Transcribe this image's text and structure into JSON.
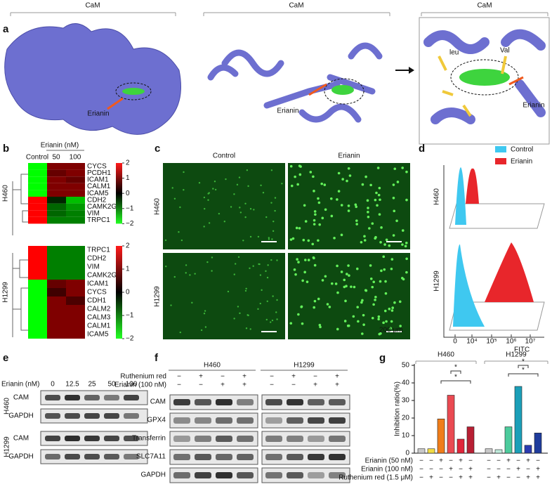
{
  "panel_a": {
    "letter": "a",
    "labels": [
      "CaM",
      "CaM",
      "CaM"
    ],
    "ligand_labels": [
      "Erianin",
      "Erianin",
      "Erianin"
    ],
    "residues": [
      "leu",
      "Val"
    ]
  },
  "panel_b": {
    "letter": "b",
    "treatment_label": "Erianin (nM)",
    "columns": [
      "Control",
      "50",
      "100"
    ],
    "heatmaps": [
      {
        "cell_line": "H460",
        "genes": [
          "CYCS",
          "PCDH1",
          "ICAM1",
          "CALM1",
          "ICAM5",
          "CDH2",
          "CAMK2G",
          "VIM",
          "TRPC1"
        ],
        "values": [
          [
            -2,
            1,
            1
          ],
          [
            -2,
            0.8,
            1
          ],
          [
            -2,
            1,
            0.8
          ],
          [
            -2,
            1,
            1
          ],
          [
            -2,
            1,
            1
          ],
          [
            2,
            -0.3,
            -1.5
          ],
          [
            2,
            -0.8,
            -1.2
          ],
          [
            2,
            -0.8,
            -1
          ],
          [
            2,
            -1,
            -1
          ]
        ]
      },
      {
        "cell_line": "H1299",
        "genes": [
          "TRPC1",
          "CDH2",
          "VIM",
          "CAMK2G",
          "ICAM1",
          "CYCS",
          "CDH1",
          "CALM2",
          "CALM3",
          "CALM1",
          "ICAM5"
        ],
        "values": [
          [
            2,
            -1,
            -1
          ],
          [
            2,
            -1,
            -1
          ],
          [
            2,
            -1,
            -1
          ],
          [
            2,
            -1,
            -1
          ],
          [
            -2,
            0.8,
            1
          ],
          [
            -2,
            0.5,
            1
          ],
          [
            -2,
            1,
            0.6
          ],
          [
            -2,
            1,
            1
          ],
          [
            -2,
            1,
            1
          ],
          [
            -2,
            1,
            1
          ],
          [
            -2,
            1,
            1
          ]
        ]
      }
    ],
    "colorbar_range": [
      -2,
      2
    ],
    "colorbar_ticks": [
      2,
      1,
      0,
      {
        "value": -1,
        "label": "−1"
      },
      {
        "value": -2,
        "label": "−2"
      }
    ]
  },
  "panel_c": {
    "letter": "c",
    "columns": [
      "Control",
      "Erianin"
    ],
    "rows": [
      "H460",
      "H1299"
    ],
    "scale_bar": "200 μm"
  },
  "panel_d": {
    "letter": "d",
    "legend": [
      {
        "name": "Control",
        "color": "#3fc8f0"
      },
      {
        "name": "Erianin",
        "color": "#e8262b"
      }
    ],
    "rows": [
      "H460",
      "H1299"
    ],
    "x_label": "FITC",
    "xticks": [
      "0",
      "10⁴",
      "10⁵",
      "10⁶",
      "10⁷"
    ]
  },
  "panel_e": {
    "letter": "e",
    "treatment_label": "Erianin (nM)",
    "doses": [
      "0",
      "12.5",
      "25",
      "50",
      "100"
    ],
    "blocks": [
      {
        "cell_line": "H460",
        "proteins": [
          "CAM",
          "GAPDH"
        ]
      },
      {
        "cell_line": "H1299",
        "proteins": [
          "CAM",
          "GAPDH"
        ]
      }
    ]
  },
  "panel_f": {
    "letter": "f",
    "cell_lines": [
      "H460",
      "H1299"
    ],
    "conditions": [
      {
        "name": "Ruthenium red",
        "signs": [
          "−",
          "+",
          "−",
          "+",
          "−",
          "+",
          "−",
          "+"
        ]
      },
      {
        "name": "Erianin (100 nM)",
        "signs": [
          "−",
          "−",
          "+",
          "+",
          "−",
          "−",
          "+",
          "+"
        ]
      }
    ],
    "proteins": [
      "CAM",
      "GPX4",
      "Transferrin",
      "SLC7A11",
      "GAPDH"
    ]
  },
  "chart_data": {
    "type": "bar",
    "letter": "g",
    "groups": [
      "H460",
      "H1299"
    ],
    "ylabel": "Inhibition ratio(%)",
    "values": [
      2.5,
      2.5,
      19.5,
      33,
      8,
      15,
      2.5,
      2,
      15,
      38,
      4.5,
      11.5
    ],
    "colors": [
      "#c8c8c8",
      "#f2dc45",
      "#f07d1a",
      "#ea4a52",
      "#e0253a",
      "#b81f33",
      "#c8c8c8",
      "#bfeadb",
      "#4ccb9c",
      "#1b9fb8",
      "#2b3bb0",
      "#1f3c9c"
    ],
    "ylim": [
      0,
      50
    ],
    "yticks": [
      0,
      10,
      20,
      30,
      40,
      50
    ],
    "conditions": [
      {
        "name": "Erianin (50 nM)",
        "signs": [
          "−",
          "−",
          "+",
          "−",
          "+",
          "−",
          "−",
          "−",
          "+",
          "−",
          "+",
          "−"
        ]
      },
      {
        "name": "Erianin (100 nM)",
        "signs": [
          "−",
          "−",
          "−",
          "+",
          "−",
          "+",
          "−",
          "−",
          "−",
          "+",
          "−",
          "+"
        ]
      },
      {
        "name": "Ruthenium red (1.5 μM)",
        "signs": [
          "−",
          "+",
          "−",
          "−",
          "+",
          "+",
          "−",
          "+",
          "−",
          "−",
          "+",
          "+"
        ]
      }
    ],
    "annotations": [
      "*",
      "*",
      "*",
      "*"
    ]
  }
}
